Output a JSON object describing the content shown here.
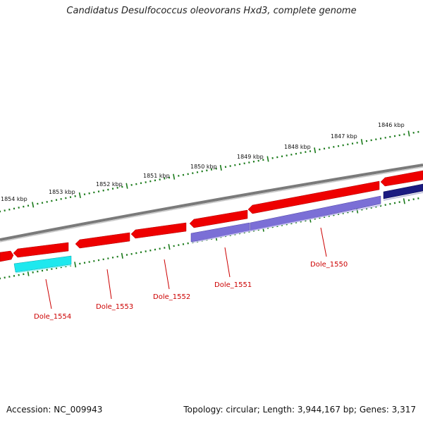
{
  "title": "Candidatus Desulfococcus oleovorans Hxd3, complete genome",
  "footer": {
    "accession": "Accession: NC_009943",
    "topology": "Topology: circular; Length: 3,944,167 bp; Genes: 3,317"
  },
  "colors": {
    "backbone": "#7a7a7a",
    "forward_gene": "#ee0000",
    "reverse_gene": "#7b6fd6",
    "highlight_gene": "#1ee8ee",
    "dark_gene": "#1a1a80",
    "tick": "#1a7a1a",
    "label": "#cc0000"
  },
  "kbp_labels": [
    "1854 kbp",
    "1853 kbp",
    "1852 kbp",
    "1851 kbp",
    "1850 kbp",
    "1849 kbp",
    "1848 kbp",
    "1847 kbp",
    "1846 kbp"
  ],
  "gene_labels": [
    "Dole_1554",
    "Dole_1553",
    "Dole_1552",
    "Dole_1551",
    "Dole_1550"
  ]
}
